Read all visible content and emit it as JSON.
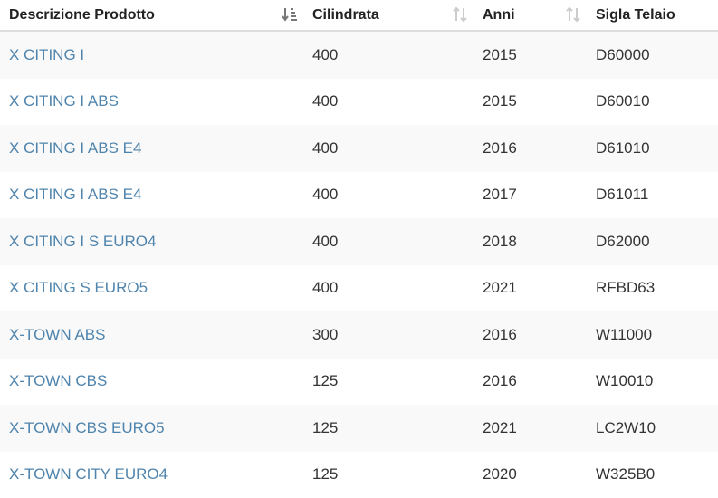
{
  "table": {
    "headers": [
      "Descrizione Prodotto",
      "Cilindrata",
      "Anni",
      "Sigla Telaio"
    ],
    "rows": [
      [
        "X CITING I",
        "400",
        "2015",
        "D60000"
      ],
      [
        "X CITING I ABS",
        "400",
        "2015",
        "D60010"
      ],
      [
        "X CITING I ABS E4",
        "400",
        "2016",
        "D61010"
      ],
      [
        "X CITING I ABS E4",
        "400",
        "2017",
        "D61011"
      ],
      [
        "X CITING I S EURO4",
        "400",
        "2018",
        "D62000"
      ],
      [
        "X CITING S EURO5",
        "400",
        "2021",
        "RFBD63"
      ],
      [
        "X-TOWN ABS",
        "300",
        "2016",
        "W11000"
      ],
      [
        "X-TOWN CBS",
        "125",
        "2016",
        "W10010"
      ],
      [
        "X-TOWN CBS EURO5",
        "125",
        "2021",
        "LC2W10"
      ],
      [
        "X-TOWN CITY EURO4",
        "125",
        "2020",
        "W325B0"
      ]
    ]
  }
}
